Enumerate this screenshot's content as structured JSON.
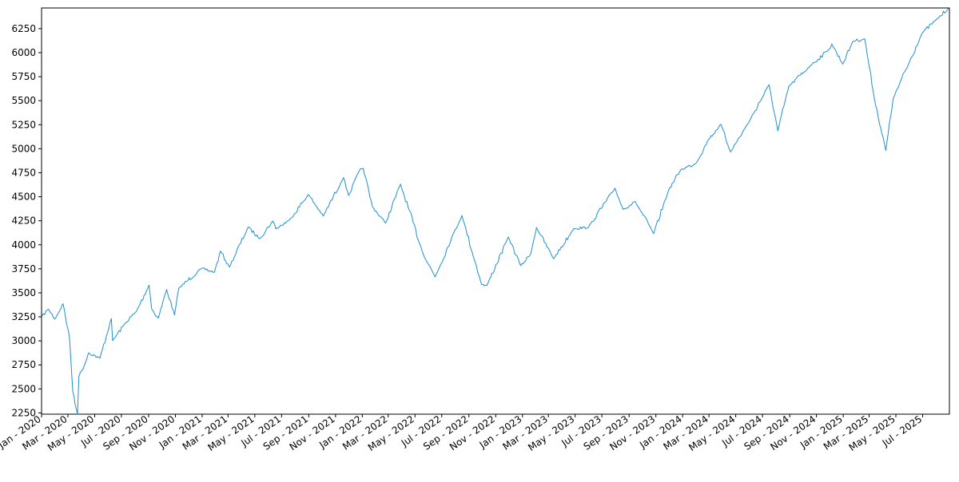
{
  "chart_data": {
    "type": "line",
    "title": "",
    "xlabel": "",
    "ylabel": "",
    "x_range": [
      "2020-01-01",
      "2025-08-31"
    ],
    "ylim": [
      2237,
      6465
    ],
    "grid": false,
    "legend": "none",
    "y_ticks": [
      2250,
      2500,
      2750,
      3000,
      3250,
      3500,
      3750,
      4000,
      4250,
      4500,
      4750,
      5000,
      5250,
      5500,
      5750,
      6000,
      6250
    ],
    "y_tick_labels": [
      "2250",
      "2500",
      "2750",
      "3000",
      "3250",
      "3500",
      "3750",
      "4000",
      "4250",
      "4500",
      "4750",
      "5000",
      "5250",
      "5500",
      "5750",
      "6000",
      "6250"
    ],
    "x_ticks": [
      "2020-01-01",
      "2020-03-01",
      "2020-05-01",
      "2020-07-01",
      "2020-09-01",
      "2020-11-01",
      "2021-01-01",
      "2021-03-01",
      "2021-05-01",
      "2021-07-01",
      "2021-09-01",
      "2021-11-01",
      "2022-01-01",
      "2022-03-01",
      "2022-05-01",
      "2022-07-01",
      "2022-09-01",
      "2022-11-01",
      "2023-01-01",
      "2023-03-01",
      "2023-05-01",
      "2023-07-01",
      "2023-09-01",
      "2023-11-01",
      "2024-01-01",
      "2024-03-01",
      "2024-05-01",
      "2024-07-01",
      "2024-09-01",
      "2024-11-01",
      "2025-01-01",
      "2025-03-01",
      "2025-05-01",
      "2025-07-01"
    ],
    "x_tick_labels": [
      "Jan - 2020",
      "Mar - 2020",
      "May - 2020",
      "Jul - 2020",
      "Sep - 2020",
      "Nov - 2020",
      "Jan - 2021",
      "Mar - 2021",
      "May - 2021",
      "Jul - 2021",
      "Sep - 2021",
      "Nov - 2021",
      "Jan - 2022",
      "Mar - 2022",
      "May - 2022",
      "Jul - 2022",
      "Sep - 2022",
      "Nov - 2022",
      "Jan - 2023",
      "Mar - 2023",
      "May - 2023",
      "Jul - 2023",
      "Sep - 2023",
      "Nov - 2023",
      "Jan - 2024",
      "Mar - 2024",
      "May - 2024",
      "Jul - 2024",
      "Sep - 2024",
      "Nov - 2024",
      "Jan - 2025",
      "Mar - 2025",
      "May - 2025",
      "Jul - 2025"
    ],
    "series": [
      {
        "color": "#1f8fd0",
        "x": [
          "2020-01-02",
          "2020-01-17",
          "2020-01-31",
          "2020-02-19",
          "2020-03-05",
          "2020-03-12",
          "2020-03-23",
          "2020-03-26",
          "2020-04-08",
          "2020-04-17",
          "2020-05-13",
          "2020-06-08",
          "2020-06-11",
          "2020-07-10",
          "2020-08-04",
          "2020-09-02",
          "2020-09-08",
          "2020-09-23",
          "2020-10-12",
          "2020-10-30",
          "2020-11-09",
          "2020-12-31",
          "2021-01-29",
          "2021-02-12",
          "2021-03-04",
          "2021-04-16",
          "2021-05-12",
          "2021-06-11",
          "2021-06-18",
          "2021-07-19",
          "2021-08-31",
          "2021-10-04",
          "2021-11-19",
          "2021-12-01",
          "2021-12-28",
          "2022-01-03",
          "2022-01-24",
          "2022-02-23",
          "2022-03-29",
          "2022-05-20",
          "2022-06-16",
          "2022-07-29",
          "2022-08-16",
          "2022-09-30",
          "2022-10-12",
          "2022-11-30",
          "2022-12-28",
          "2023-01-19",
          "2023-02-02",
          "2023-03-13",
          "2023-04-28",
          "2023-05-31",
          "2023-07-31",
          "2023-08-18",
          "2023-09-15",
          "2023-10-27",
          "2023-11-30",
          "2023-12-28",
          "2024-01-31",
          "2024-02-29",
          "2024-03-28",
          "2024-04-19",
          "2024-05-31",
          "2024-07-16",
          "2024-08-05",
          "2024-08-30",
          "2024-10-18",
          "2024-11-29",
          "2024-12-06",
          "2024-12-31",
          "2025-01-23",
          "2025-02-19",
          "2025-03-13",
          "2025-04-08",
          "2025-04-25",
          "2025-06-30",
          "2025-07-31",
          "2025-08-29"
        ],
        "y": [
          3258,
          3330,
          3226,
          3386,
          3024,
          2480,
          2237,
          2630,
          2750,
          2875,
          2820,
          3232,
          3002,
          3185,
          3306,
          3580,
          3332,
          3236,
          3534,
          3270,
          3550,
          3756,
          3714,
          3934,
          3768,
          4185,
          4063,
          4247,
          4166,
          4258,
          4523,
          4300,
          4700,
          4513,
          4793,
          4796,
          4397,
          4225,
          4631,
          3901,
          3666,
          4130,
          4305,
          3585,
          3577,
          4080,
          3783,
          3898,
          4179,
          3855,
          4169,
          4180,
          4589,
          4369,
          4450,
          4117,
          4568,
          4783,
          4845,
          5096,
          5254,
          4967,
          5278,
          5667,
          5186,
          5648,
          5864,
          6032,
          6090,
          5881,
          6119,
          6144,
          5521,
          4982,
          5525,
          6205,
          6339,
          6460
        ]
      }
    ]
  }
}
